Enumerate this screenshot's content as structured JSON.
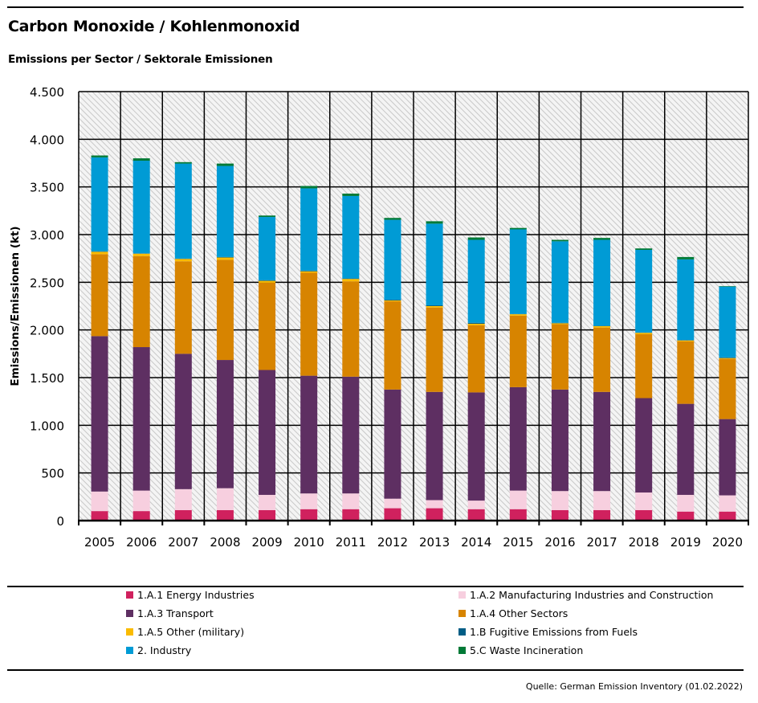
{
  "header": {
    "title": "Carbon Monoxide / Kohlenmonoxid",
    "subtitle": "Emissions per Sector / Sektorale Emissionen"
  },
  "source": "Quelle: German Emission Inventory (01.02.2022)",
  "chart_data": {
    "type": "bar",
    "stacked": true,
    "title": "Carbon Monoxide / Kohlenmonoxid",
    "subtitle": "Emissions per Sector / Sektorale Emissionen",
    "xlabel": "",
    "ylabel": "Emissions/Emissionen (kt)",
    "ylim": [
      0,
      4500
    ],
    "yticks": [
      0,
      500,
      1000,
      1500,
      2000,
      2500,
      3000,
      3500,
      4000,
      4500
    ],
    "ytick_labels": [
      "0",
      "500",
      "1.000",
      "1.500",
      "2.000",
      "2.500",
      "3.000",
      "3.500",
      "4.000",
      "4.500"
    ],
    "grid": true,
    "legend_position": "bottom",
    "categories": [
      "2005",
      "2006",
      "2007",
      "2008",
      "2009",
      "2010",
      "2011",
      "2012",
      "2013",
      "2014",
      "2015",
      "2016",
      "2017",
      "2018",
      "2019",
      "2020"
    ],
    "series": [
      {
        "name": "1.A.1 Energy Industries",
        "color": "#D0215E",
        "values": [
          100,
          100,
          110,
          110,
          110,
          120,
          120,
          130,
          130,
          120,
          120,
          110,
          110,
          110,
          95,
          95
        ]
      },
      {
        "name": "1.A.2 Manufacturing Industries and Construction",
        "color": "#F7CFDF",
        "values": [
          205,
          215,
          220,
          230,
          160,
          165,
          165,
          100,
          85,
          90,
          195,
          200,
          200,
          185,
          175,
          170
        ]
      },
      {
        "name": "1.A.3 Transport",
        "color": "#5E2F62",
        "values": [
          1630,
          1505,
          1420,
          1345,
          1310,
          1235,
          1225,
          1145,
          1135,
          1135,
          1085,
          1065,
          1040,
          990,
          955,
          800
        ]
      },
      {
        "name": "1.A.4 Other Sectors",
        "color": "#D78400",
        "values": [
          860,
          955,
          970,
          1050,
          915,
          1080,
          1000,
          925,
          885,
          705,
          750,
          685,
          675,
          670,
          655,
          632
        ]
      },
      {
        "name": "1.A.5 Other (military)",
        "color": "#FABB00",
        "values": [
          25,
          25,
          25,
          25,
          20,
          15,
          25,
          10,
          15,
          15,
          15,
          10,
          15,
          15,
          10,
          8
        ]
      },
      {
        "name": "1.B Fugitive Emissions from Fuels",
        "color": "#005D85",
        "values": [
          5,
          3,
          3,
          5,
          7,
          7,
          5,
          8,
          8,
          10,
          3,
          5,
          3,
          3,
          5,
          7
        ]
      },
      {
        "name": "2. Industry",
        "color": "#009BD5",
        "values": [
          985,
          972,
          997,
          955,
          663,
          863,
          865,
          837,
          857,
          870,
          887,
          855,
          902,
          867,
          845,
          743
        ]
      },
      {
        "name": "5.C Waste Incineration",
        "color": "#007A37",
        "values": [
          20,
          25,
          15,
          25,
          15,
          25,
          25,
          20,
          25,
          25,
          15,
          15,
          20,
          15,
          25,
          5
        ]
      }
    ]
  }
}
